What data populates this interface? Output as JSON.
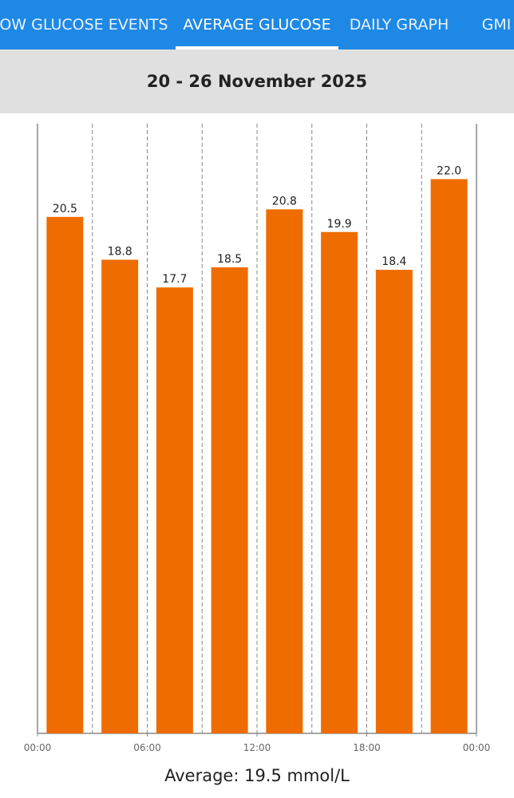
{
  "tabs": [
    "LOW GLUCOSE EVENTS",
    "AVERAGE GLUCOSE",
    "DAILY GRAPH",
    "GMI"
  ],
  "date_range": "20 - 26 November 2025",
  "average": "Average: 19.5 mmol/L",
  "chart_data": {
    "type": "bar",
    "color": "#ef6c00",
    "x": [
      1.5,
      4.5,
      7.5,
      10.5,
      13.5,
      16.5,
      19.5,
      22.5
    ],
    "values": [
      20.5,
      18.8,
      17.7,
      18.5,
      20.8,
      19.9,
      18.4,
      22.0
    ],
    "value_labels": [
      "20.5",
      "18.8",
      "17.7",
      "18.5",
      "20.8",
      "19.9",
      "18.4",
      "22.0"
    ],
    "xlim": [
      0,
      24
    ],
    "xticks": [
      {
        "value": 0,
        "label": "00:00"
      },
      {
        "value": 6,
        "label": "06:00"
      },
      {
        "value": 12,
        "label": "12:00"
      },
      {
        "value": 18,
        "label": "18:00"
      },
      {
        "value": 24,
        "label": "00:00"
      }
    ],
    "ylim": [
      0,
      24.2
    ]
  }
}
